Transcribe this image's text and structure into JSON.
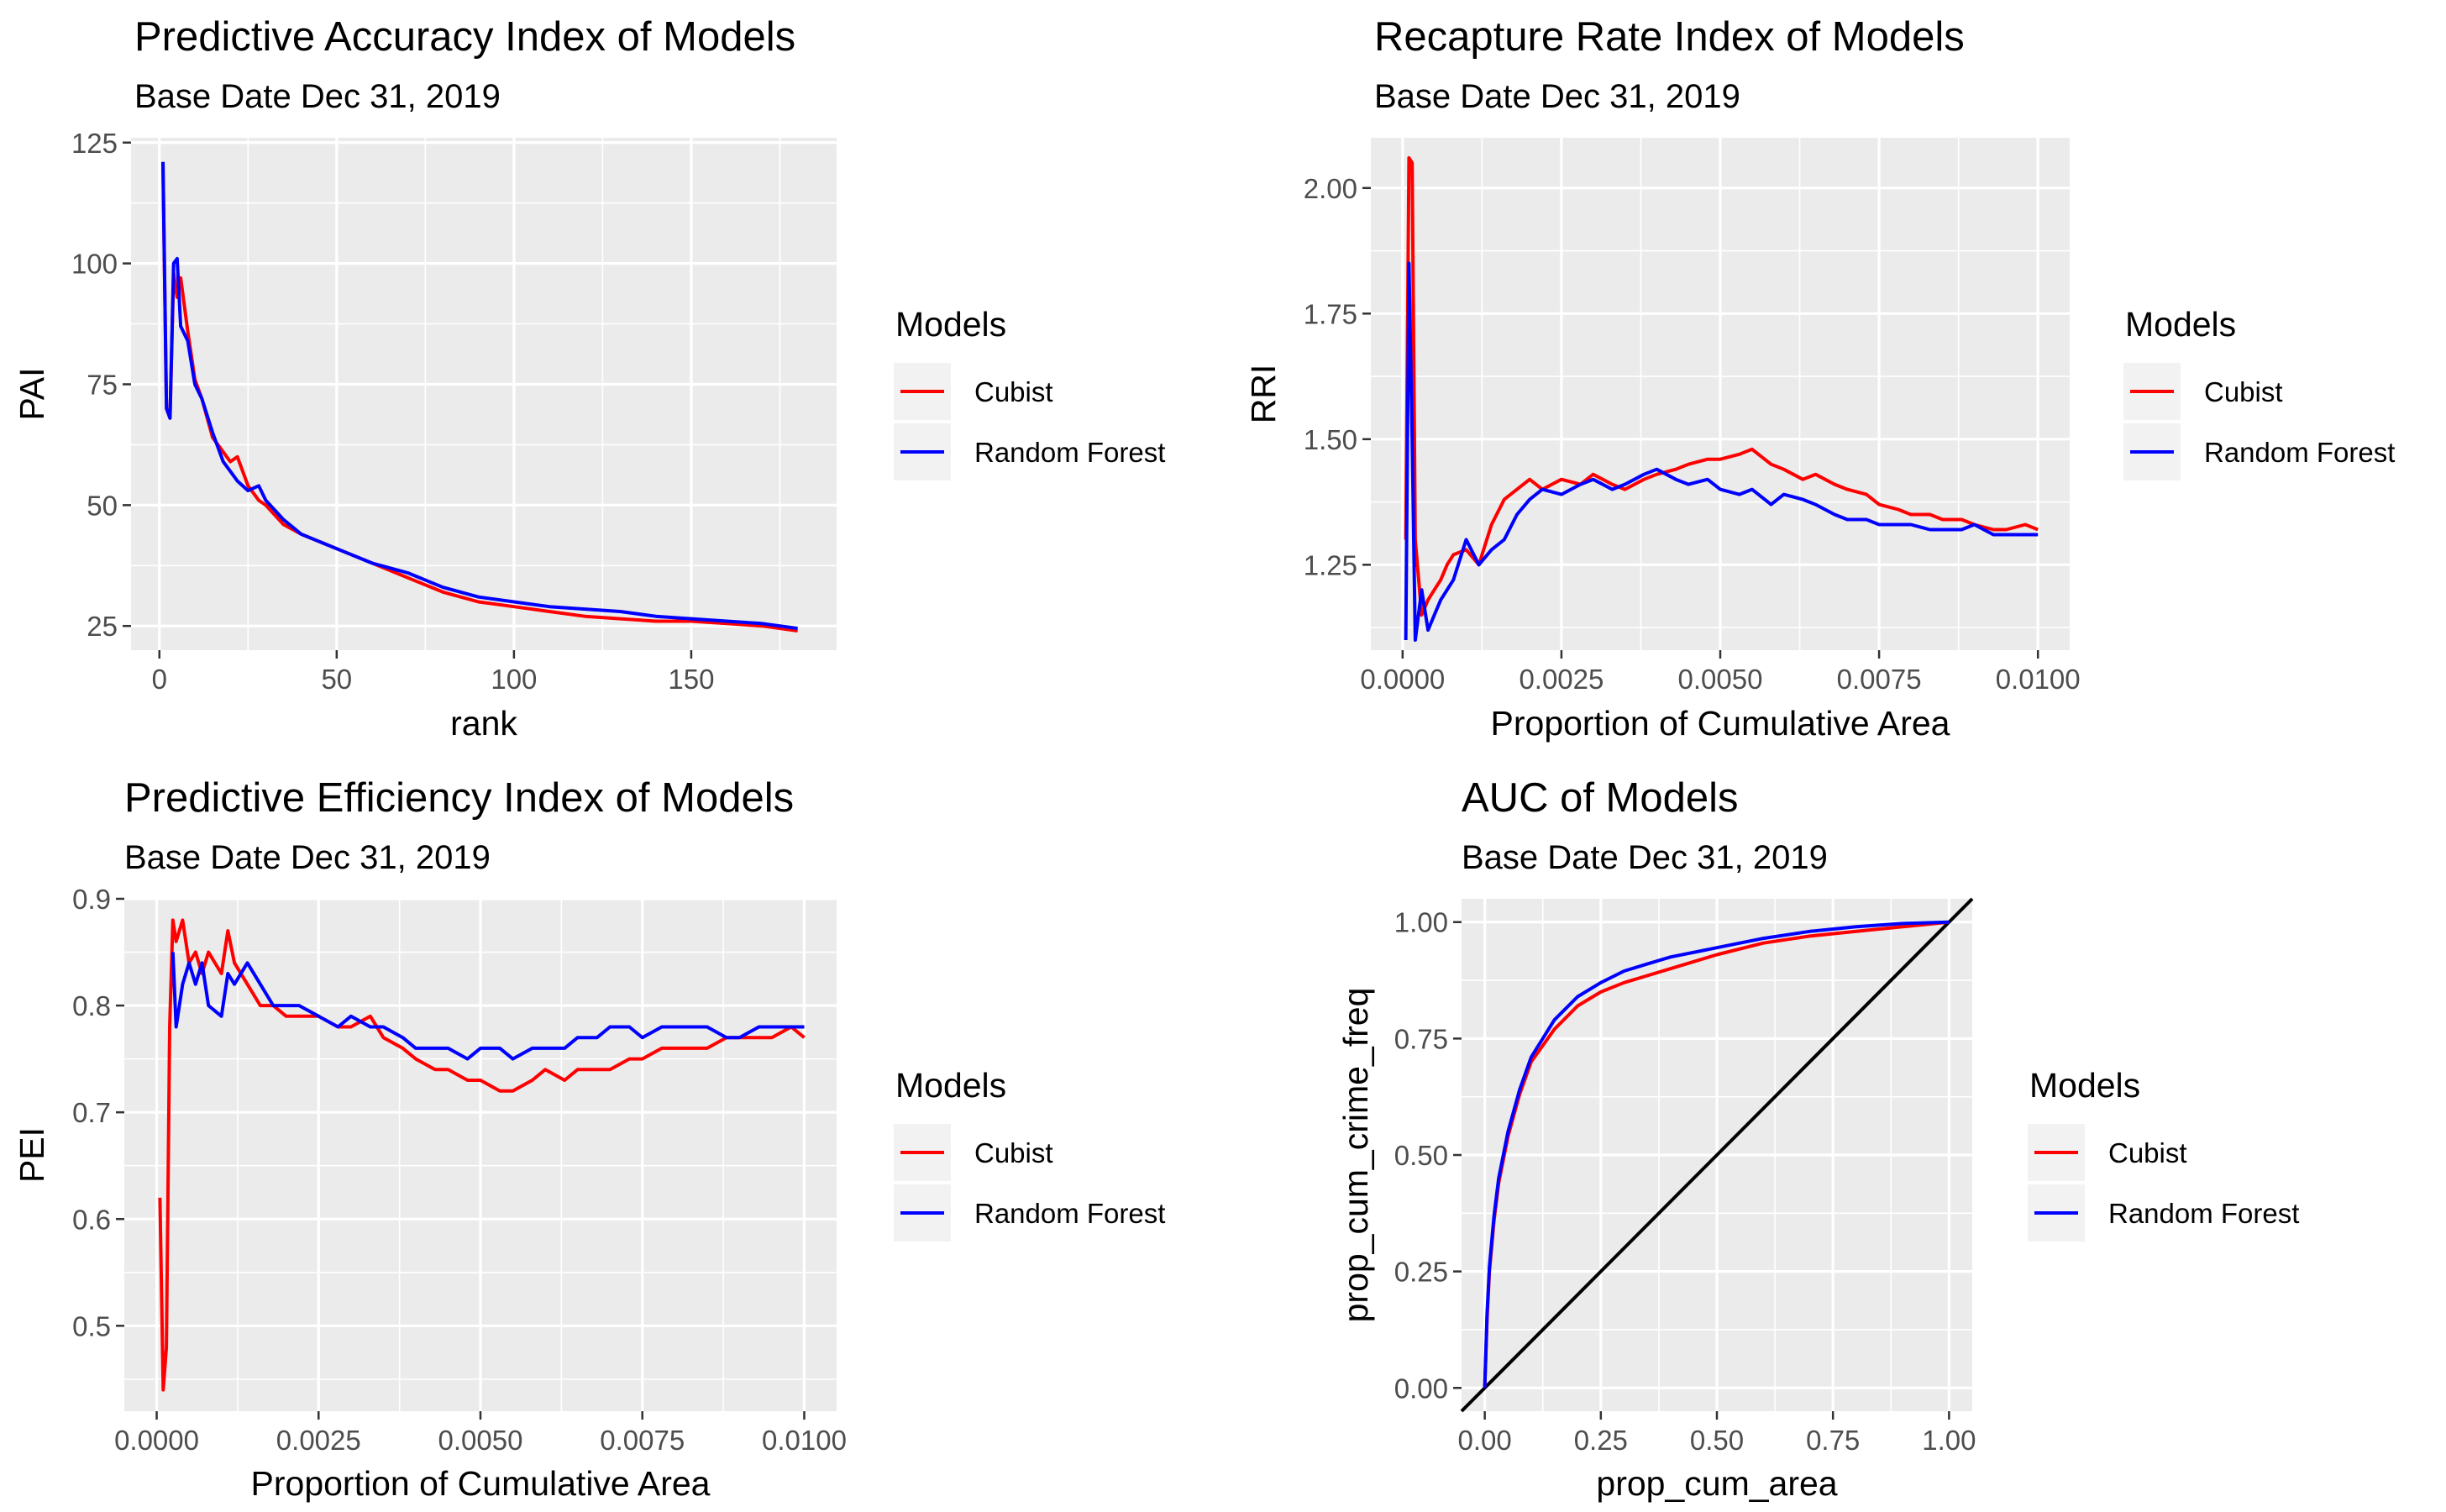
{
  "colors": {
    "cubist": "#FF0000",
    "random_forest": "#0000FF",
    "reference_line": "#000000"
  },
  "chart_data": [
    {
      "type": "line",
      "title": "Predictive Accuracy Index of Models",
      "subtitle": "Base Date Dec 31, 2019",
      "xlabel": "rank",
      "ylabel": "PAI",
      "xlim": [
        -8,
        191
      ],
      "ylim": [
        20,
        126
      ],
      "xticks": [
        0,
        50,
        100,
        150
      ],
      "xtick_labels": [
        "0",
        "50",
        "100",
        "150"
      ],
      "yticks": [
        25,
        50,
        75,
        100,
        125
      ],
      "ytick_labels": [
        "25",
        "50",
        "75",
        "100",
        "125"
      ],
      "grid": true,
      "legend": {
        "title": "Models",
        "position": "right",
        "entries": [
          "Cubist",
          "Random Forest"
        ]
      },
      "series": [
        {
          "name": "Cubist",
          "color": "#FF0000",
          "x": [
            1,
            2,
            3,
            4,
            5,
            6,
            8,
            10,
            12,
            15,
            18,
            20,
            22,
            25,
            28,
            30,
            35,
            40,
            50,
            60,
            70,
            80,
            90,
            100,
            110,
            120,
            130,
            140,
            150,
            160,
            170,
            180
          ],
          "y": [
            121,
            70,
            68,
            98,
            93,
            97,
            86,
            76,
            72,
            64,
            61,
            59,
            60,
            54,
            51,
            50,
            46,
            44,
            41,
            38,
            35,
            32,
            30,
            29,
            28,
            27,
            26.5,
            26,
            26,
            25.5,
            25,
            24
          ]
        },
        {
          "name": "Random Forest",
          "color": "#0000FF",
          "x": [
            1,
            2,
            3,
            4,
            5,
            6,
            8,
            10,
            12,
            15,
            18,
            20,
            22,
            25,
            28,
            30,
            35,
            40,
            50,
            60,
            70,
            80,
            90,
            100,
            110,
            120,
            130,
            140,
            150,
            160,
            170,
            180
          ],
          "y": [
            121,
            70,
            68,
            100,
            101,
            87,
            84,
            75,
            72,
            65,
            59,
            57,
            55,
            53,
            54,
            51,
            47,
            44,
            41,
            38,
            36,
            33,
            31,
            30,
            29,
            28.5,
            28,
            27,
            26.5,
            26,
            25.5,
            24.5
          ]
        }
      ]
    },
    {
      "type": "line",
      "title": "Recapture Rate Index of Models",
      "subtitle": "Base Date Dec 31, 2019",
      "xlabel": "Proportion of Cumulative Area",
      "ylabel": "RRI",
      "xlim": [
        -0.0005,
        0.0105
      ],
      "ylim": [
        1.08,
        2.1
      ],
      "xticks": [
        0,
        0.0025,
        0.005,
        0.0075,
        0.01
      ],
      "xtick_labels": [
        "0.0000",
        "0.0025",
        "0.0050",
        "0.0075",
        "0.0100"
      ],
      "yticks": [
        1.25,
        1.5,
        1.75,
        2.0
      ],
      "ytick_labels": [
        "1.25",
        "1.50",
        "1.75",
        "2.00"
      ],
      "grid": true,
      "legend": {
        "title": "Models",
        "position": "right",
        "entries": [
          "Cubist",
          "Random Forest"
        ]
      },
      "series": [
        {
          "name": "Cubist",
          "color": "#FF0000",
          "x": [
            5e-05,
            0.0001,
            0.00015,
            0.0002,
            0.0003,
            0.0004,
            0.0005,
            0.0006,
            0.0007,
            0.0008,
            0.001,
            0.0012,
            0.0014,
            0.0016,
            0.0018,
            0.002,
            0.0022,
            0.0025,
            0.0028,
            0.003,
            0.0033,
            0.0035,
            0.0038,
            0.004,
            0.0043,
            0.0045,
            0.0048,
            0.005,
            0.0053,
            0.0055,
            0.0058,
            0.006,
            0.0063,
            0.0065,
            0.0068,
            0.007,
            0.0073,
            0.0075,
            0.0078,
            0.008,
            0.0083,
            0.0085,
            0.0088,
            0.009,
            0.0093,
            0.0095,
            0.0098,
            0.01
          ],
          "y": [
            1.3,
            2.06,
            2.05,
            1.3,
            1.15,
            1.18,
            1.2,
            1.22,
            1.25,
            1.27,
            1.28,
            1.25,
            1.33,
            1.38,
            1.4,
            1.42,
            1.4,
            1.42,
            1.41,
            1.43,
            1.41,
            1.4,
            1.42,
            1.43,
            1.44,
            1.45,
            1.46,
            1.46,
            1.47,
            1.48,
            1.45,
            1.44,
            1.42,
            1.43,
            1.41,
            1.4,
            1.39,
            1.37,
            1.36,
            1.35,
            1.35,
            1.34,
            1.34,
            1.33,
            1.32,
            1.32,
            1.33,
            1.32
          ]
        },
        {
          "name": "Random Forest",
          "color": "#0000FF",
          "x": [
            5e-05,
            0.0001,
            0.00015,
            0.0002,
            0.0003,
            0.0004,
            0.0005,
            0.0006,
            0.0007,
            0.0008,
            0.001,
            0.0012,
            0.0014,
            0.0016,
            0.0018,
            0.002,
            0.0022,
            0.0025,
            0.0028,
            0.003,
            0.0033,
            0.0035,
            0.0038,
            0.004,
            0.0043,
            0.0045,
            0.0048,
            0.005,
            0.0053,
            0.0055,
            0.0058,
            0.006,
            0.0063,
            0.0065,
            0.0068,
            0.007,
            0.0073,
            0.0075,
            0.0078,
            0.008,
            0.0083,
            0.0085,
            0.0088,
            0.009,
            0.0093,
            0.0095,
            0.0098,
            0.01
          ],
          "y": [
            1.1,
            1.85,
            1.5,
            1.1,
            1.2,
            1.12,
            1.15,
            1.18,
            1.2,
            1.22,
            1.3,
            1.25,
            1.28,
            1.3,
            1.35,
            1.38,
            1.4,
            1.39,
            1.41,
            1.42,
            1.4,
            1.41,
            1.43,
            1.44,
            1.42,
            1.41,
            1.42,
            1.4,
            1.39,
            1.4,
            1.37,
            1.39,
            1.38,
            1.37,
            1.35,
            1.34,
            1.34,
            1.33,
            1.33,
            1.33,
            1.32,
            1.32,
            1.32,
            1.33,
            1.31,
            1.31,
            1.31,
            1.31
          ]
        }
      ]
    },
    {
      "type": "line",
      "title": "Predictive Efficiency Index of Models",
      "subtitle": "Base Date Dec 31, 2019",
      "xlabel": "Proportion of Cumulative Area",
      "ylabel": "PEI",
      "xlim": [
        -0.0005,
        0.0105
      ],
      "ylim": [
        0.42,
        0.9
      ],
      "xticks": [
        0,
        0.0025,
        0.005,
        0.0075,
        0.01
      ],
      "xtick_labels": [
        "0.0000",
        "0.0025",
        "0.0050",
        "0.0075",
        "0.0100"
      ],
      "yticks": [
        0.5,
        0.6,
        0.7,
        0.8,
        0.9
      ],
      "ytick_labels": [
        "0.5",
        "0.6",
        "0.7",
        "0.8",
        "0.9"
      ],
      "grid": true,
      "legend": {
        "title": "Models",
        "position": "right",
        "entries": [
          "Cubist",
          "Random Forest"
        ]
      },
      "series": [
        {
          "name": "Cubist",
          "color": "#FF0000",
          "x": [
            5e-05,
            0.0001,
            0.00015,
            0.0002,
            0.00025,
            0.0003,
            0.0004,
            0.0005,
            0.0006,
            0.0007,
            0.0008,
            0.001,
            0.0011,
            0.0012,
            0.0014,
            0.0016,
            0.0018,
            0.002,
            0.0022,
            0.0025,
            0.0028,
            0.003,
            0.0033,
            0.0035,
            0.0038,
            0.004,
            0.0043,
            0.0045,
            0.0048,
            0.005,
            0.0053,
            0.0055,
            0.0058,
            0.006,
            0.0063,
            0.0065,
            0.0068,
            0.007,
            0.0073,
            0.0075,
            0.0078,
            0.008,
            0.0083,
            0.0085,
            0.0088,
            0.009,
            0.0093,
            0.0095,
            0.0098,
            0.01
          ],
          "y": [
            0.62,
            0.44,
            0.48,
            0.78,
            0.88,
            0.86,
            0.88,
            0.84,
            0.85,
            0.83,
            0.85,
            0.83,
            0.87,
            0.84,
            0.82,
            0.8,
            0.8,
            0.79,
            0.79,
            0.79,
            0.78,
            0.78,
            0.79,
            0.77,
            0.76,
            0.75,
            0.74,
            0.74,
            0.73,
            0.73,
            0.72,
            0.72,
            0.73,
            0.74,
            0.73,
            0.74,
            0.74,
            0.74,
            0.75,
            0.75,
            0.76,
            0.76,
            0.76,
            0.76,
            0.77,
            0.77,
            0.77,
            0.77,
            0.78,
            0.77
          ]
        },
        {
          "name": "Random Forest",
          "color": "#0000FF",
          "x": [
            0.00025,
            0.0003,
            0.0004,
            0.0005,
            0.0006,
            0.0007,
            0.0008,
            0.001,
            0.0011,
            0.0012,
            0.0014,
            0.0016,
            0.0018,
            0.002,
            0.0022,
            0.0025,
            0.0028,
            0.003,
            0.0033,
            0.0035,
            0.0038,
            0.004,
            0.0043,
            0.0045,
            0.0048,
            0.005,
            0.0053,
            0.0055,
            0.0058,
            0.006,
            0.0063,
            0.0065,
            0.0068,
            0.007,
            0.0073,
            0.0075,
            0.0078,
            0.008,
            0.0083,
            0.0085,
            0.0088,
            0.009,
            0.0093,
            0.0095,
            0.0098,
            0.01
          ],
          "y": [
            0.85,
            0.78,
            0.82,
            0.84,
            0.82,
            0.84,
            0.8,
            0.79,
            0.83,
            0.82,
            0.84,
            0.82,
            0.8,
            0.8,
            0.8,
            0.79,
            0.78,
            0.79,
            0.78,
            0.78,
            0.77,
            0.76,
            0.76,
            0.76,
            0.75,
            0.76,
            0.76,
            0.75,
            0.76,
            0.76,
            0.76,
            0.77,
            0.77,
            0.78,
            0.78,
            0.77,
            0.78,
            0.78,
            0.78,
            0.78,
            0.77,
            0.77,
            0.78,
            0.78,
            0.78,
            0.78
          ]
        }
      ]
    },
    {
      "type": "line",
      "title": "AUC of Models",
      "subtitle": "Base Date Dec 31, 2019",
      "xlabel": "prop_cum_area",
      "ylabel": "prop_cum_crime_freq",
      "xlim": [
        -0.05,
        1.05
      ],
      "ylim": [
        -0.05,
        1.05
      ],
      "xticks": [
        0,
        0.25,
        0.5,
        0.75,
        1.0
      ],
      "xtick_labels": [
        "0.00",
        "0.25",
        "0.50",
        "0.75",
        "1.00"
      ],
      "yticks": [
        0,
        0.25,
        0.5,
        0.75,
        1.0
      ],
      "ytick_labels": [
        "0.00",
        "0.25",
        "0.50",
        "0.75",
        "1.00"
      ],
      "grid": true,
      "legend": {
        "title": "Models",
        "position": "right",
        "entries": [
          "Cubist",
          "Random Forest"
        ]
      },
      "reference_line": {
        "x": [
          -0.05,
          1.05
        ],
        "y": [
          -0.05,
          1.05
        ]
      },
      "series": [
        {
          "name": "Cubist",
          "color": "#FF0000",
          "x": [
            0,
            0.005,
            0.01,
            0.02,
            0.03,
            0.05,
            0.075,
            0.1,
            0.15,
            0.2,
            0.25,
            0.3,
            0.35,
            0.4,
            0.5,
            0.6,
            0.7,
            0.8,
            0.9,
            1.0
          ],
          "y": [
            0,
            0.15,
            0.25,
            0.36,
            0.44,
            0.54,
            0.63,
            0.7,
            0.77,
            0.82,
            0.85,
            0.87,
            0.885,
            0.9,
            0.93,
            0.955,
            0.97,
            0.98,
            0.99,
            1.0
          ]
        },
        {
          "name": "Random Forest",
          "color": "#0000FF",
          "x": [
            0,
            0.005,
            0.01,
            0.02,
            0.03,
            0.05,
            0.075,
            0.1,
            0.15,
            0.2,
            0.25,
            0.3,
            0.35,
            0.4,
            0.5,
            0.6,
            0.7,
            0.8,
            0.9,
            1.0
          ],
          "y": [
            0,
            0.16,
            0.26,
            0.37,
            0.45,
            0.55,
            0.64,
            0.71,
            0.79,
            0.84,
            0.87,
            0.895,
            0.91,
            0.925,
            0.945,
            0.965,
            0.98,
            0.99,
            0.997,
            1.0
          ]
        }
      ]
    }
  ]
}
